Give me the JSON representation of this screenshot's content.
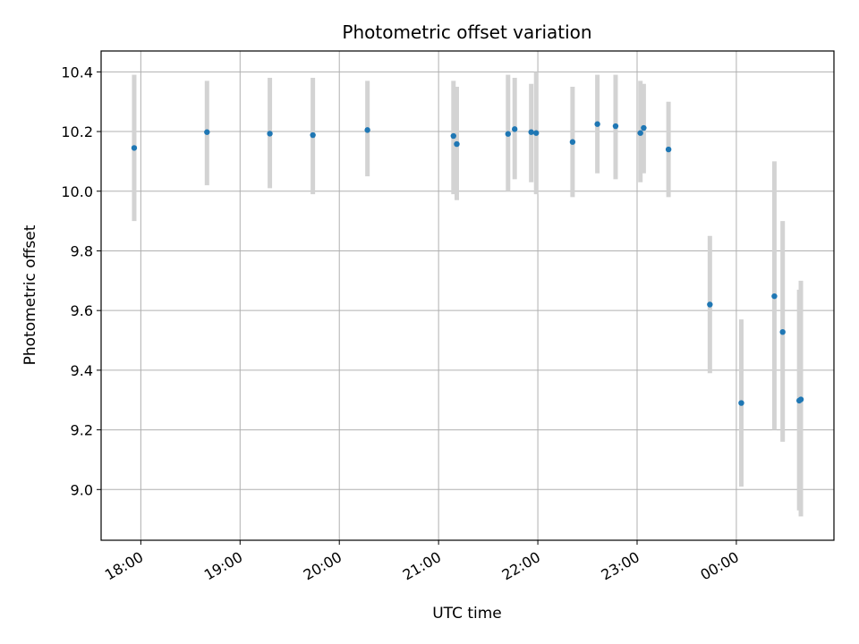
{
  "chart_data": {
    "type": "scatter",
    "title": "Photometric offset variation",
    "xlabel": "UTC time",
    "ylabel": "Photometric offset",
    "x_is_time": true,
    "x_tick_labels": [
      "18:00",
      "19:00",
      "20:00",
      "21:00",
      "22:00",
      "23:00",
      "00:00"
    ],
    "x_ticks": [
      "18:00",
      "19:00",
      "20:00",
      "21:00",
      "22:00",
      "23:00",
      "24:00"
    ],
    "xlim": [
      "17:36",
      "00:59"
    ],
    "ylim": [
      8.83,
      10.47
    ],
    "y_ticks": [
      9.0,
      9.2,
      9.4,
      9.6,
      9.8,
      10.0,
      10.2,
      10.4
    ],
    "y_tick_labels": [
      "9.0",
      "9.2",
      "9.4",
      "9.6",
      "9.8",
      "10.0",
      "10.2",
      "10.4"
    ],
    "grid": true,
    "colors": {
      "point": "#1f77b4",
      "errorbar": "#d3d3d3",
      "grid": "#b0b0b0"
    },
    "points": [
      {
        "t": "17:56",
        "y": 10.145,
        "low": 9.9,
        "high": 10.39
      },
      {
        "t": "18:40",
        "y": 10.198,
        "low": 10.02,
        "high": 10.37
      },
      {
        "t": "19:18",
        "y": 10.193,
        "low": 10.01,
        "high": 10.38
      },
      {
        "t": "19:44",
        "y": 10.188,
        "low": 9.99,
        "high": 10.38
      },
      {
        "t": "20:17",
        "y": 10.205,
        "low": 10.05,
        "high": 10.37
      },
      {
        "t": "21:09",
        "y": 10.185,
        "low": 9.99,
        "high": 10.37
      },
      {
        "t": "21:11",
        "y": 10.158,
        "low": 9.97,
        "high": 10.35
      },
      {
        "t": "21:42",
        "y": 10.192,
        "low": 10.0,
        "high": 10.39
      },
      {
        "t": "21:46",
        "y": 10.208,
        "low": 10.04,
        "high": 10.38
      },
      {
        "t": "21:56",
        "y": 10.198,
        "low": 10.03,
        "high": 10.36
      },
      {
        "t": "21:59",
        "y": 10.195,
        "low": 9.99,
        "high": 10.4
      },
      {
        "t": "22:21",
        "y": 10.165,
        "low": 9.98,
        "high": 10.35
      },
      {
        "t": "22:36",
        "y": 10.225,
        "low": 10.06,
        "high": 10.39
      },
      {
        "t": "22:47",
        "y": 10.218,
        "low": 10.04,
        "high": 10.39
      },
      {
        "t": "23:02",
        "y": 10.195,
        "low": 10.03,
        "high": 10.37
      },
      {
        "t": "23:04",
        "y": 10.212,
        "low": 10.06,
        "high": 10.36
      },
      {
        "t": "23:19",
        "y": 10.14,
        "low": 9.98,
        "high": 10.3
      },
      {
        "t": "23:44",
        "y": 9.62,
        "low": 9.39,
        "high": 9.85
      },
      {
        "t": "00:03",
        "y": 9.29,
        "low": 9.01,
        "high": 9.57
      },
      {
        "t": "00:23",
        "y": 9.648,
        "low": 9.2,
        "high": 10.1
      },
      {
        "t": "00:28",
        "y": 9.528,
        "low": 9.16,
        "high": 9.9
      },
      {
        "t": "00:38",
        "y": 9.298,
        "low": 8.93,
        "high": 9.67
      },
      {
        "t": "00:39",
        "y": 9.302,
        "low": 8.91,
        "high": 9.7
      }
    ]
  }
}
